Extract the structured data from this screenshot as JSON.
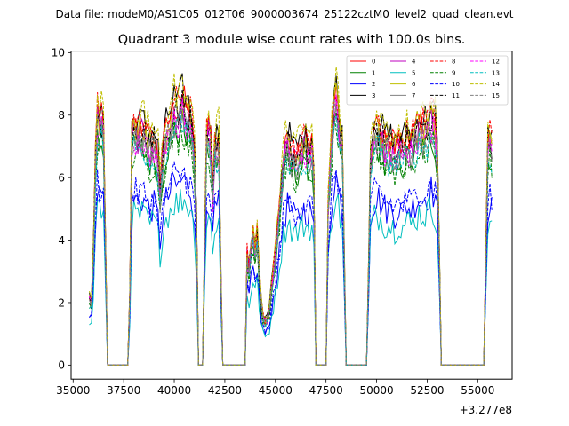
{
  "figure": {
    "suptitle": "Data file: modeM0/AS1C05_012T06_9000003674_25122cztM0_level2_quad_clean.evt",
    "title": "Quadrant 3 module wise count rates with 100.0s bins.",
    "offset_label": "+3.277e8"
  },
  "chart_data": {
    "type": "line",
    "title": "Quadrant 3 module wise count rates with 100.0s bins.",
    "xlabel": "",
    "ylabel": "",
    "x_offset": 327700000,
    "xlim": [
      34900,
      56700
    ],
    "ylim": [
      -0.45,
      10.05
    ],
    "x_ticks": [
      35000,
      37500,
      40000,
      42500,
      45000,
      47500,
      50000,
      52500,
      55000
    ],
    "x_tick_labels": [
      "35000",
      "37500",
      "40000",
      "42500",
      "45000",
      "47500",
      "50000",
      "52500",
      "55000"
    ],
    "y_ticks": [
      0,
      2,
      4,
      6,
      8,
      10
    ],
    "y_tick_labels": [
      "0",
      "2",
      "4",
      "6",
      "8",
      "10"
    ],
    "grid": false,
    "legend_position": "upper-right",
    "legend_columns": 4,
    "bin_width": 100,
    "x_start": 35800,
    "x_end": 55700,
    "base_profile": [
      [
        35800,
        2.1
      ],
      [
        35900,
        2.0
      ],
      [
        36000,
        3.5
      ],
      [
        36100,
        6.5
      ],
      [
        36200,
        8.0
      ],
      [
        36300,
        7.6
      ],
      [
        36400,
        7.8
      ],
      [
        36500,
        7.5
      ],
      [
        36600,
        4.0
      ],
      [
        36700,
        0.0
      ],
      [
        37700,
        0.0
      ],
      [
        37800,
        2.2
      ],
      [
        37900,
        7.3
      ],
      [
        38000,
        7.5
      ],
      [
        38200,
        7.4
      ],
      [
        38400,
        7.5
      ],
      [
        38600,
        7.3
      ],
      [
        38800,
        7.0
      ],
      [
        39000,
        7.2
      ],
      [
        39200,
        6.6
      ],
      [
        39300,
        5.5
      ],
      [
        39400,
        6.5
      ],
      [
        39600,
        7.4
      ],
      [
        39800,
        7.8
      ],
      [
        40000,
        8.2
      ],
      [
        40200,
        8.0
      ],
      [
        40400,
        8.4
      ],
      [
        40600,
        8.1
      ],
      [
        40800,
        7.9
      ],
      [
        41000,
        6.8
      ],
      [
        41100,
        4.5
      ],
      [
        41200,
        0.0
      ],
      [
        41400,
        0.0
      ],
      [
        41500,
        4.0
      ],
      [
        41600,
        7.2
      ],
      [
        41700,
        7.5
      ],
      [
        41800,
        7.0
      ],
      [
        41900,
        5.5
      ],
      [
        42000,
        7.0
      ],
      [
        42200,
        7.2
      ],
      [
        42300,
        3.0
      ],
      [
        42400,
        0.0
      ],
      [
        43500,
        0.0
      ],
      [
        43600,
        3.5
      ],
      [
        43700,
        3.0
      ],
      [
        43800,
        3.8
      ],
      [
        43900,
        4.3
      ],
      [
        44000,
        3.8
      ],
      [
        44100,
        4.2
      ],
      [
        44200,
        3.0
      ],
      [
        44300,
        2.0
      ],
      [
        44400,
        1.5
      ],
      [
        44500,
        1.4
      ],
      [
        44600,
        1.5
      ],
      [
        44700,
        1.8
      ],
      [
        44800,
        2.4
      ],
      [
        45000,
        3.5
      ],
      [
        45200,
        5.0
      ],
      [
        45400,
        6.5
      ],
      [
        45600,
        7.2
      ],
      [
        45800,
        6.8
      ],
      [
        46000,
        6.6
      ],
      [
        46200,
        6.8
      ],
      [
        46400,
        7.0
      ],
      [
        46600,
        6.9
      ],
      [
        46800,
        6.9
      ],
      [
        46900,
        6.0
      ],
      [
        47000,
        0.0
      ],
      [
        47500,
        0.0
      ],
      [
        47600,
        5.0
      ],
      [
        47800,
        7.5
      ],
      [
        47900,
        8.3
      ],
      [
        48000,
        8.5
      ],
      [
        48100,
        8.0
      ],
      [
        48200,
        7.4
      ],
      [
        48300,
        7.0
      ],
      [
        48400,
        3.5
      ],
      [
        48500,
        0.0
      ],
      [
        49500,
        0.0
      ],
      [
        49600,
        3.0
      ],
      [
        49700,
        6.8
      ],
      [
        49900,
        7.4
      ],
      [
        50100,
        7.5
      ],
      [
        50300,
        7.2
      ],
      [
        50500,
        7.0
      ],
      [
        50700,
        7.0
      ],
      [
        50900,
        6.8
      ],
      [
        51100,
        7.1
      ],
      [
        51300,
        6.9
      ],
      [
        51500,
        7.2
      ],
      [
        51700,
        7.0
      ],
      [
        51900,
        7.3
      ],
      [
        52100,
        7.6
      ],
      [
        52300,
        7.5
      ],
      [
        52500,
        7.6
      ],
      [
        52700,
        7.9
      ],
      [
        52900,
        7.6
      ],
      [
        53000,
        6.8
      ],
      [
        53100,
        3.5
      ],
      [
        53200,
        0.0
      ],
      [
        55300,
        0.0
      ],
      [
        55400,
        3.5
      ],
      [
        55500,
        7.0
      ],
      [
        55600,
        7.3
      ],
      [
        55700,
        7.0
      ]
    ],
    "series": [
      {
        "name": "0",
        "color": "#ff0000",
        "dash": "solid",
        "scale": 1.02
      },
      {
        "name": "1",
        "color": "#008000",
        "dash": "solid",
        "scale": 0.92
      },
      {
        "name": "2",
        "color": "#0000ff",
        "dash": "solid",
        "scale": 0.71
      },
      {
        "name": "3",
        "color": "#000000",
        "dash": "solid",
        "scale": 1.05
      },
      {
        "name": "4",
        "color": "#bf00bf",
        "dash": "solid",
        "scale": 0.98
      },
      {
        "name": "5",
        "color": "#00bfbf",
        "dash": "solid",
        "scale": 0.64
      },
      {
        "name": "6",
        "color": "#bfbf00",
        "dash": "solid",
        "scale": 1.0
      },
      {
        "name": "7",
        "color": "#808080",
        "dash": "solid",
        "scale": 0.95
      },
      {
        "name": "8",
        "color": "#ff0000",
        "dash": "dashed",
        "scale": 1.04
      },
      {
        "name": "9",
        "color": "#008000",
        "dash": "dashed",
        "scale": 0.9
      },
      {
        "name": "10",
        "color": "#0000ff",
        "dash": "dashed",
        "scale": 0.74
      },
      {
        "name": "11",
        "color": "#000000",
        "dash": "dashed",
        "scale": 1.0
      },
      {
        "name": "12",
        "color": "#ff00ff",
        "dash": "dashed",
        "scale": 0.96
      },
      {
        "name": "13",
        "color": "#00bfbf",
        "dash": "dashed",
        "scale": 0.93
      },
      {
        "name": "14",
        "color": "#bfbf00",
        "dash": "dashed",
        "scale": 1.08
      },
      {
        "name": "15",
        "color": "#808080",
        "dash": "dashed",
        "scale": 0.97
      }
    ]
  }
}
